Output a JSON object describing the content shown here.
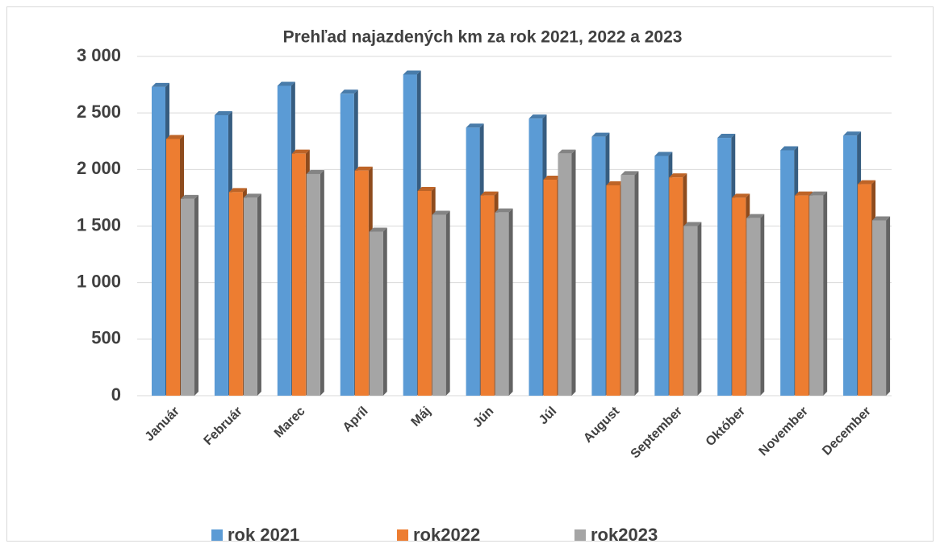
{
  "chart_data": {
    "type": "bar3d",
    "title": "Prehľad najazdených km za rok 2021, 2022 a 2023",
    "categories": [
      "Január",
      "Február",
      "Marec",
      "Apríl",
      "Máj",
      "Jún",
      "Júl",
      "August",
      "September",
      "Október",
      "November",
      "December"
    ],
    "series": [
      {
        "name": "rok 2021",
        "color": "#5b9bd5",
        "values": [
          2730,
          2480,
          2740,
          2670,
          2840,
          2370,
          2450,
          2290,
          2120,
          2280,
          2170,
          2300
        ]
      },
      {
        "name": "rok2022",
        "color": "#ed7d31",
        "values": [
          2270,
          1800,
          2140,
          1990,
          1810,
          1770,
          1910,
          1860,
          1930,
          1750,
          1770,
          1870
        ]
      },
      {
        "name": "rok2023",
        "color": "#a5a5a5",
        "values": [
          1740,
          1750,
          1960,
          1450,
          1600,
          1620,
          2140,
          1950,
          1500,
          1570,
          1770,
          1550
        ]
      }
    ],
    "ylim": [
      0,
      3000
    ],
    "yticks": [
      0,
      500,
      {
        "value": 1000,
        "label": "1 000"
      },
      {
        "value": 1500,
        "label": "1 500"
      },
      {
        "value": 2000,
        "label": "2 000"
      },
      {
        "value": 2500,
        "label": "2 500"
      },
      {
        "value": 3000,
        "label": "3 000"
      }
    ],
    "grid": true,
    "legend": "bottom"
  }
}
